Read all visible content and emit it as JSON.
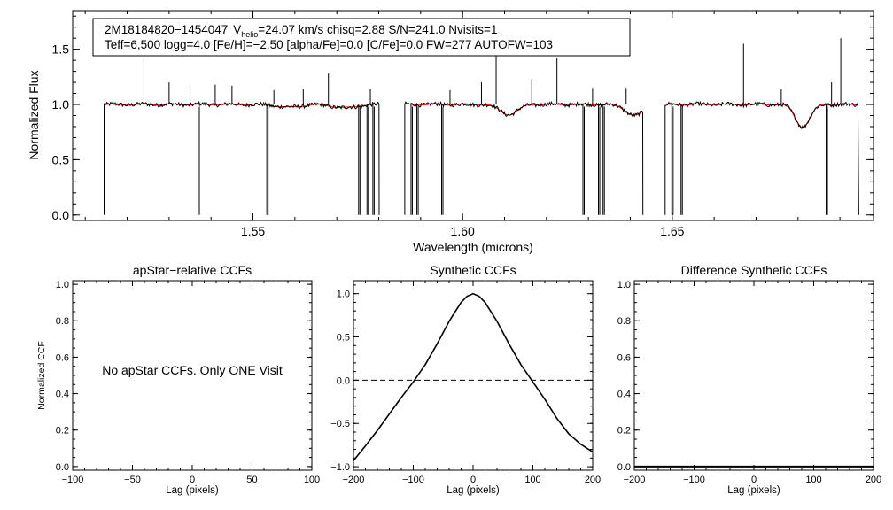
{
  "chart_data": [
    {
      "type": "line",
      "name": "spectrum",
      "info_box": {
        "line1": "2M18184820−1454047  Vhelio=24.07 km/s  chisq=2.88  S/N=241.0  Nvisits=1",
        "line1_parts": {
          "id": "2M18184820−1454047",
          "v_label": "V",
          "v_sub": "helio",
          "v_rest": "=24.07 km/s  chisq=2.88  S/N=241.0  Nvisits=1"
        },
        "line2": "Teff=6,500 logg=4.0 [Fe/H]=−2.50 [alpha/Fe]=0.0 [C/Fe]=0.0 FW=277 AUTOFW=103"
      },
      "xlabel": "Wavelength (microns)",
      "ylabel": "Normalized Flux",
      "xlim": [
        1.507,
        1.698
      ],
      "ylim": [
        -0.05,
        1.85
      ],
      "xticks": [
        {
          "value": 1.55,
          "label": "1.55"
        },
        {
          "value": 1.6,
          "label": "1.60"
        },
        {
          "value": 1.65,
          "label": "1.65"
        }
      ],
      "yticks": [
        {
          "value": 0.0,
          "label": "0.0"
        },
        {
          "value": 0.5,
          "label": "0.5"
        },
        {
          "value": 1.0,
          "label": "1.0"
        },
        {
          "value": 1.5,
          "label": "1.5"
        }
      ],
      "chips": [
        {
          "start": 1.5145,
          "end": 1.5801
        },
        {
          "start": 1.5862,
          "end": 1.643
        },
        {
          "start": 1.6483,
          "end": 1.6945
        }
      ],
      "series": [
        {
          "name": "observed",
          "color": "#000000"
        },
        {
          "name": "model",
          "color": "#ff0000"
        }
      ],
      "absorption_lines": [
        {
          "center": 1.5585,
          "depth": 0.025,
          "width": 0.004
        },
        {
          "center": 1.572,
          "depth": 0.03,
          "width": 0.004
        },
        {
          "center": 1.611,
          "depth": 0.09,
          "width": 0.003
        },
        {
          "center": 1.6411,
          "depth": 0.1,
          "width": 0.003
        },
        {
          "center": 1.6811,
          "depth": 0.2,
          "width": 0.0025
        }
      ],
      "emission_spikes": [
        {
          "x": 1.524,
          "y": 1.42
        },
        {
          "x": 1.53,
          "y": 1.2
        },
        {
          "x": 1.535,
          "y": 1.16
        },
        {
          "x": 1.541,
          "y": 1.18
        },
        {
          "x": 1.545,
          "y": 1.17
        },
        {
          "x": 1.555,
          "y": 1.13
        },
        {
          "x": 1.562,
          "y": 1.14
        },
        {
          "x": 1.568,
          "y": 1.28
        },
        {
          "x": 1.578,
          "y": 1.14
        },
        {
          "x": 1.597,
          "y": 1.13
        },
        {
          "x": 1.6045,
          "y": 1.2
        },
        {
          "x": 1.608,
          "y": 1.6
        },
        {
          "x": 1.6165,
          "y": 1.23
        },
        {
          "x": 1.6225,
          "y": 1.42
        },
        {
          "x": 1.631,
          "y": 1.15
        },
        {
          "x": 1.639,
          "y": 1.15
        },
        {
          "x": 1.667,
          "y": 1.55
        },
        {
          "x": 1.676,
          "y": 1.14
        },
        {
          "x": 1.688,
          "y": 1.2
        },
        {
          "x": 1.6902,
          "y": 1.6
        }
      ],
      "dropouts": [
        {
          "x": 1.5369,
          "y": 0.0
        },
        {
          "x": 1.5533,
          "y": 0.0
        },
        {
          "x": 1.5752,
          "y": 0.0
        },
        {
          "x": 1.5772,
          "y": 0.0
        },
        {
          "x": 1.5786,
          "y": 0.0
        },
        {
          "x": 1.5877,
          "y": 0.0
        },
        {
          "x": 1.5891,
          "y": 0.0
        },
        {
          "x": 1.595,
          "y": 0.0
        },
        {
          "x": 1.6287,
          "y": 0.0
        },
        {
          "x": 1.6324,
          "y": 0.0
        },
        {
          "x": 1.6335,
          "y": 0.0
        },
        {
          "x": 1.6499,
          "y": 0.0
        },
        {
          "x": 1.6521,
          "y": 0.0
        },
        {
          "x": 1.6867,
          "y": 0.0
        }
      ]
    },
    {
      "type": "line",
      "name": "apstar-ccf",
      "title": "apStar−relative CCFs",
      "xlabel": "Lag (pixels)",
      "ylabel": "Normalized CCF",
      "xlim": [
        -100,
        100
      ],
      "ylim": [
        -0.02,
        1.02
      ],
      "xticks": [
        {
          "value": -100,
          "label": "−100"
        },
        {
          "value": -50,
          "label": "−50"
        },
        {
          "value": 0,
          "label": "0"
        },
        {
          "value": 50,
          "label": "50"
        },
        {
          "value": 100,
          "label": "100"
        }
      ],
      "yticks": [
        {
          "value": 0.0,
          "label": "0.0"
        },
        {
          "value": 0.2,
          "label": "0.2"
        },
        {
          "value": 0.4,
          "label": "0.4"
        },
        {
          "value": 0.6,
          "label": "0.6"
        },
        {
          "value": 0.8,
          "label": "0.8"
        },
        {
          "value": 1.0,
          "label": "1.0"
        }
      ],
      "annotation": "No apStar CCFs.  Only ONE Visit",
      "series": []
    },
    {
      "type": "line",
      "name": "synthetic-ccf",
      "title": "Synthetic CCFs",
      "xlabel": "Lag (pixels)",
      "ylabel": "",
      "xlim": [
        -200,
        200
      ],
      "ylim": [
        -1.04,
        1.15
      ],
      "xticks": [
        {
          "value": -200,
          "label": "−200"
        },
        {
          "value": -100,
          "label": "−100"
        },
        {
          "value": 0,
          "label": "0"
        },
        {
          "value": 100,
          "label": "100"
        },
        {
          "value": 200,
          "label": "200"
        }
      ],
      "yticks": [
        {
          "value": -1.0,
          "label": "−1.0"
        },
        {
          "value": -0.5,
          "label": "−0.5"
        },
        {
          "value": 0.0,
          "label": "0.0"
        },
        {
          "value": 0.5,
          "label": "0.5"
        },
        {
          "value": 1.0,
          "label": "1.0"
        }
      ],
      "zero_line": 0.0,
      "series": [
        {
          "name": "ccf",
          "x": [
            -200,
            -180,
            -160,
            -140,
            -120,
            -100,
            -80,
            -60,
            -40,
            -20,
            -10,
            0,
            10,
            20,
            40,
            60,
            80,
            100,
            120,
            140,
            160,
            180,
            200
          ],
          "y": [
            -0.93,
            -0.76,
            -0.58,
            -0.39,
            -0.2,
            -0.02,
            0.18,
            0.42,
            0.68,
            0.9,
            0.97,
            1.0,
            0.97,
            0.9,
            0.68,
            0.42,
            0.18,
            -0.02,
            -0.22,
            -0.44,
            -0.62,
            -0.74,
            -0.83
          ]
        }
      ]
    },
    {
      "type": "line",
      "name": "difference-ccf",
      "title": "Difference Synthetic CCFs",
      "xlabel": "Lag (pixels)",
      "ylabel": "",
      "xlim": [
        -200,
        200
      ],
      "ylim": [
        -0.02,
        1.02
      ],
      "xticks": [
        {
          "value": -200,
          "label": "−200"
        },
        {
          "value": -100,
          "label": "−100"
        },
        {
          "value": 0,
          "label": "0"
        },
        {
          "value": 100,
          "label": "100"
        },
        {
          "value": 200,
          "label": "200"
        }
      ],
      "yticks": [
        {
          "value": 0.0,
          "label": "0.0"
        },
        {
          "value": 0.2,
          "label": "0.2"
        },
        {
          "value": 0.4,
          "label": "0.4"
        },
        {
          "value": 0.6,
          "label": "0.6"
        },
        {
          "value": 0.8,
          "label": "0.8"
        },
        {
          "value": 1.0,
          "label": "1.0"
        }
      ],
      "series": [
        {
          "name": "difference",
          "x": [
            -200,
            200
          ],
          "y": [
            0.0,
            0.0
          ]
        }
      ]
    }
  ]
}
